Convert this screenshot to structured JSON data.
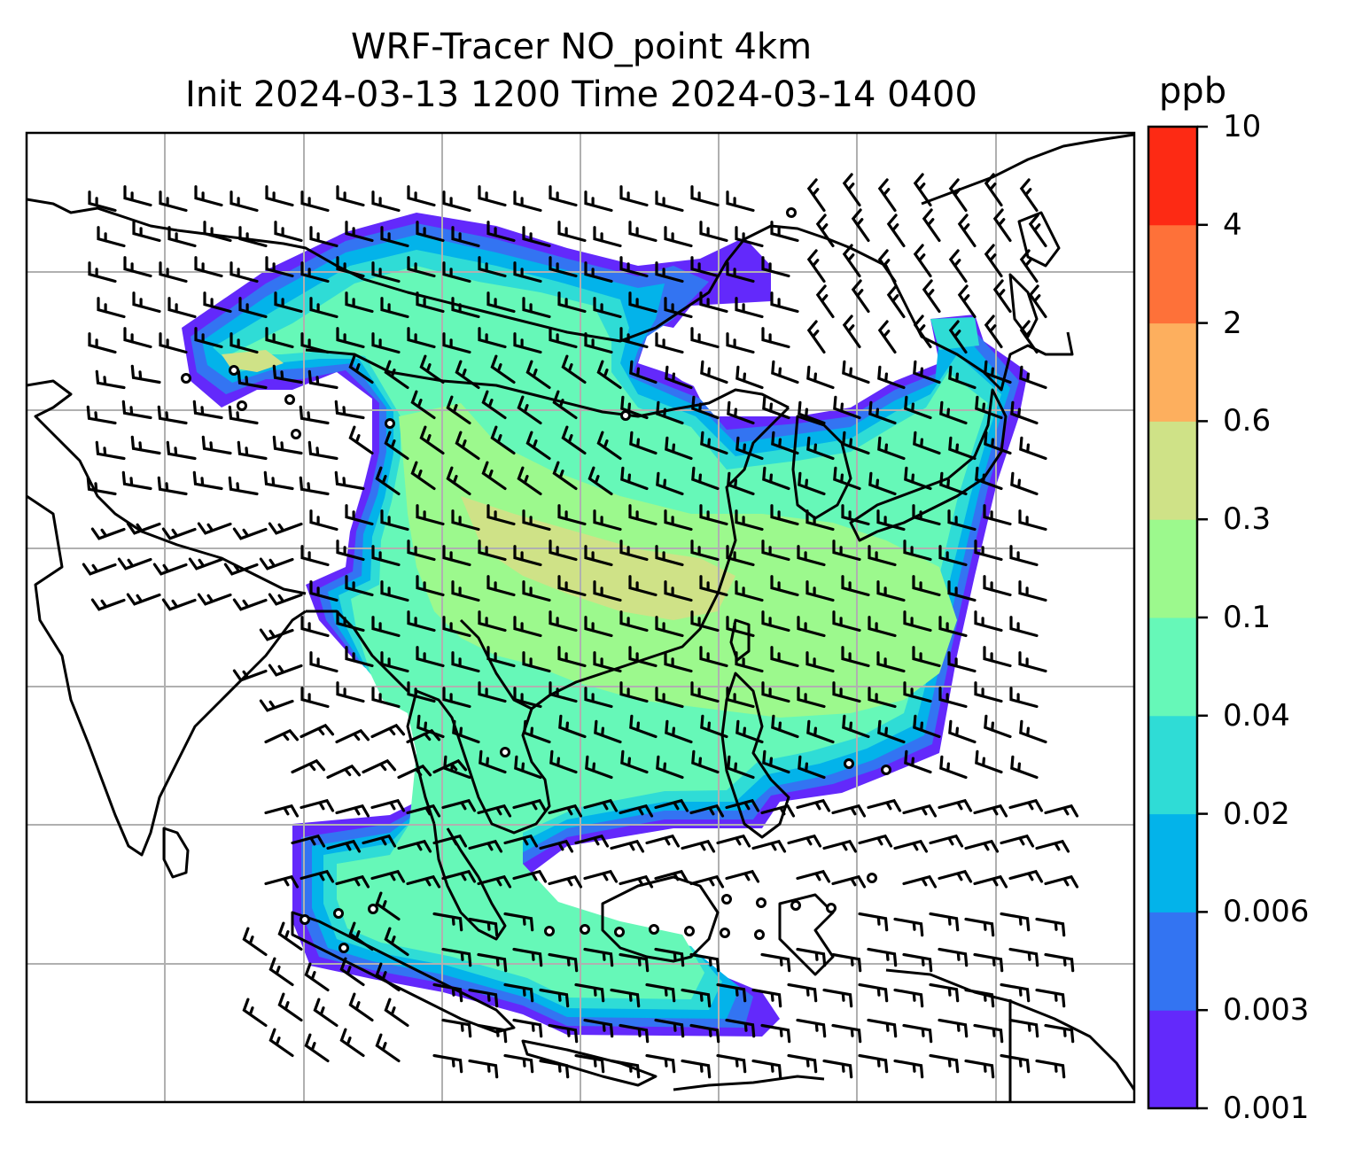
{
  "title": {
    "line1": "WRF-Tracer NO_point 4km",
    "line2": "Init 2024-03-13 1200 Time 2024-03-14 0400"
  },
  "colorbar": {
    "units": "ppb",
    "levels": [
      "0.001",
      "0.003",
      "0.006",
      "0.02",
      "0.04",
      "0.1",
      "0.3",
      "0.6",
      "2",
      "4",
      "10"
    ],
    "colors": [
      "#6329fb",
      "#3374f2",
      "#03b3ea",
      "#2fdcd6",
      "#66f8b8",
      "#9cf98d",
      "#cfe287",
      "#fdaf5e",
      "#fe7139",
      "#fd2a14"
    ]
  },
  "map": {
    "gridlines": true,
    "background": "#ffffff",
    "coastline_color": "#000000",
    "gridline_color": "#b0b0b0"
  }
}
